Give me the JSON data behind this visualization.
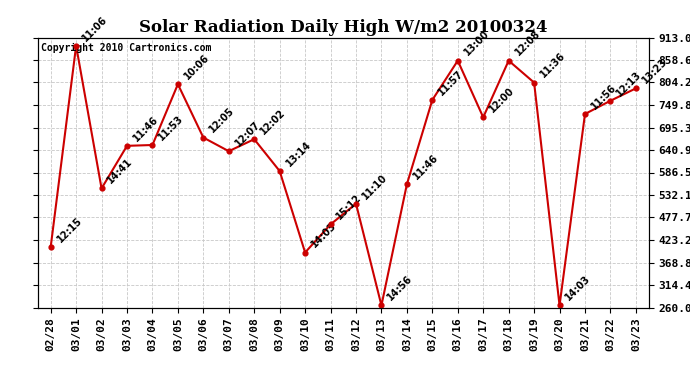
{
  "title": "Solar Radiation Daily High W/m2 20100324",
  "copyright_text": "Copyright 2010 Cartronics.com",
  "background_color": "#ffffff",
  "line_color": "#cc0000",
  "marker_color": "#cc0000",
  "grid_color": "#c8c8c8",
  "dates": [
    "02/28",
    "03/01",
    "03/02",
    "03/03",
    "03/04",
    "03/05",
    "03/06",
    "03/07",
    "03/08",
    "03/09",
    "03/10",
    "03/11",
    "03/12",
    "03/13",
    "03/14",
    "03/15",
    "03/16",
    "03/17",
    "03/18",
    "03/19",
    "03/20",
    "03/21",
    "03/22",
    "03/23"
  ],
  "values": [
    406,
    893,
    548,
    651,
    653,
    800,
    671,
    638,
    667,
    590,
    393,
    461,
    511,
    265,
    558,
    762,
    857,
    720,
    857,
    804,
    265,
    728,
    760,
    790
  ],
  "labels": [
    "12:15",
    "11:06",
    "14:41",
    "11:46",
    "11:53",
    "10:06",
    "12:05",
    "12:07",
    "12:02",
    "13:14",
    "14:03",
    "15:12",
    "11:10",
    "14:56",
    "11:46",
    "11:57",
    "13:00",
    "12:00",
    "12:08",
    "11:36",
    "14:03",
    "11:56",
    "12:13",
    "13:23"
  ],
  "ylim_min": 260.0,
  "ylim_max": 913.0,
  "ytick_values": [
    260.0,
    314.4,
    368.8,
    423.2,
    477.7,
    532.1,
    586.5,
    640.9,
    695.3,
    749.8,
    804.2,
    858.6,
    913.0
  ],
  "label_fontsize": 7.0,
  "label_rotation": 45,
  "tick_fontsize": 8.0,
  "title_fontsize": 12
}
